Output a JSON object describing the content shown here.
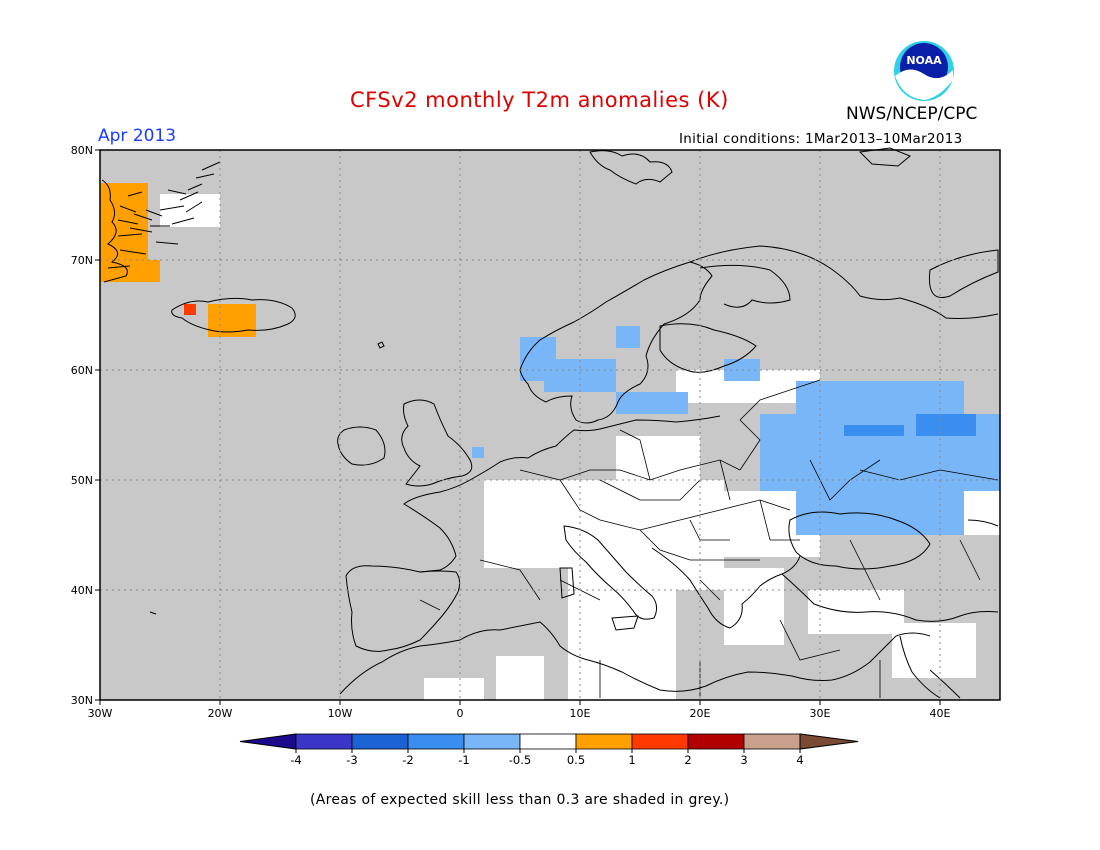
{
  "header": {
    "title": "CFSv2 monthly T2m anomalies (K)",
    "month": "Apr 2013",
    "initial_conditions": "Initial conditions: 1Mar2013–10Mar2013",
    "org": "NWS/NCEP/CPC",
    "logo_text": "NOAA"
  },
  "map": {
    "lat_range": [
      30,
      80
    ],
    "lon_range": [
      -30,
      45
    ],
    "lat_ticks": [
      {
        "value": 80,
        "label": "80N"
      },
      {
        "value": 70,
        "label": "70N"
      },
      {
        "value": 60,
        "label": "60N"
      },
      {
        "value": 50,
        "label": "50N"
      },
      {
        "value": 40,
        "label": "40N"
      },
      {
        "value": 30,
        "label": "30N"
      }
    ],
    "lon_ticks": [
      {
        "value": -30,
        "label": "30W"
      },
      {
        "value": -20,
        "label": "20W"
      },
      {
        "value": -10,
        "label": "10W"
      },
      {
        "value": 0,
        "label": "0"
      },
      {
        "value": 10,
        "label": "10E"
      },
      {
        "value": 20,
        "label": "20E"
      },
      {
        "value": 30,
        "label": "30E"
      },
      {
        "value": 40,
        "label": "40E"
      }
    ],
    "grid": "dotted",
    "background_color": "#c8c8c8",
    "regions": [
      {
        "category": "white",
        "lon": [
          2,
          12
        ],
        "lat": [
          42,
          50
        ]
      },
      {
        "category": "white",
        "lon": [
          12,
          22
        ],
        "lat": [
          40,
          50
        ]
      },
      {
        "category": "white",
        "lon": [
          22,
          30
        ],
        "lat": [
          43,
          49
        ]
      },
      {
        "category": "white",
        "lon": [
          9,
          18
        ],
        "lat": [
          30,
          42
        ]
      },
      {
        "category": "white",
        "lon": [
          22,
          27
        ],
        "lat": [
          35,
          42
        ]
      },
      {
        "category": "white",
        "lon": [
          30,
          45
        ],
        "lat": [
          45,
          49
        ]
      },
      {
        "category": "white",
        "lon": [
          29,
          37
        ],
        "lat": [
          36,
          40
        ]
      },
      {
        "category": "white",
        "lon": [
          36,
          43
        ],
        "lat": [
          32,
          37
        ]
      },
      {
        "category": "white",
        "lon": [
          18,
          30
        ],
        "lat": [
          57,
          60
        ]
      },
      {
        "category": "white",
        "lon": [
          -25,
          -20
        ],
        "lat": [
          73,
          76
        ]
      },
      {
        "category": "white",
        "lon": [
          -3,
          2
        ],
        "lat": [
          30,
          32
        ]
      },
      {
        "category": "white",
        "lon": [
          3,
          7
        ],
        "lat": [
          30,
          34
        ]
      },
      {
        "category": "white",
        "lon": [
          13,
          20
        ],
        "lat": [
          50,
          54
        ]
      },
      {
        "category": "light-blue",
        "lon": [
          25,
          45
        ],
        "lat": [
          49,
          56
        ]
      },
      {
        "category": "light-blue",
        "lon": [
          28,
          42
        ],
        "lat": [
          45,
          59
        ]
      },
      {
        "category": "light-blue",
        "lon": [
          32,
          37
        ],
        "lat": [
          57,
          59
        ]
      },
      {
        "category": "light-blue",
        "lon": [
          7,
          13
        ],
        "lat": [
          58,
          61
        ]
      },
      {
        "category": "light-blue",
        "lon": [
          13,
          19
        ],
        "lat": [
          56,
          58
        ]
      },
      {
        "category": "light-blue",
        "lon": [
          5,
          8
        ],
        "lat": [
          59,
          63
        ]
      },
      {
        "category": "light-blue",
        "lon": [
          22,
          25
        ],
        "lat": [
          59,
          61
        ]
      },
      {
        "category": "light-blue",
        "lon": [
          13,
          15
        ],
        "lat": [
          62,
          64
        ]
      },
      {
        "category": "light-blue",
        "lon": [
          1,
          2
        ],
        "lat": [
          52,
          53
        ]
      },
      {
        "category": "blue",
        "lon": [
          32,
          37
        ],
        "lat": [
          54,
          55
        ]
      },
      {
        "category": "blue",
        "lon": [
          38,
          43
        ],
        "lat": [
          54,
          56
        ]
      },
      {
        "category": "orange",
        "lon": [
          -30,
          -26
        ],
        "lat": [
          68,
          77
        ]
      },
      {
        "category": "orange",
        "lon": [
          -26,
          -25
        ],
        "lat": [
          68,
          70
        ]
      },
      {
        "category": "orange",
        "lon": [
          -21,
          -17
        ],
        "lat": [
          63,
          66
        ]
      },
      {
        "category": "red",
        "lon": [
          -23,
          -22
        ],
        "lat": [
          65,
          66
        ]
      }
    ]
  },
  "colorbar": {
    "colors": {
      "below": "#1b0a8c",
      "c1": "#3b36c8",
      "c2": "#1b62d4",
      "c3": "#3a8ef0",
      "c4": "#78b6f7",
      "c5": "#ffffff",
      "c6": "#ff9f00",
      "c7": "#ff3a00",
      "c8": "#b20000",
      "c9": "#c9a08c",
      "above": "#7a4a35"
    },
    "tick_labels": [
      "-4",
      "-3",
      "-2",
      "-1",
      "-0.5",
      "0.5",
      "1",
      "2",
      "3",
      "4"
    ]
  },
  "footer": {
    "skill_note": "(Areas of expected skill less than 0.3 are shaded in grey.)"
  }
}
